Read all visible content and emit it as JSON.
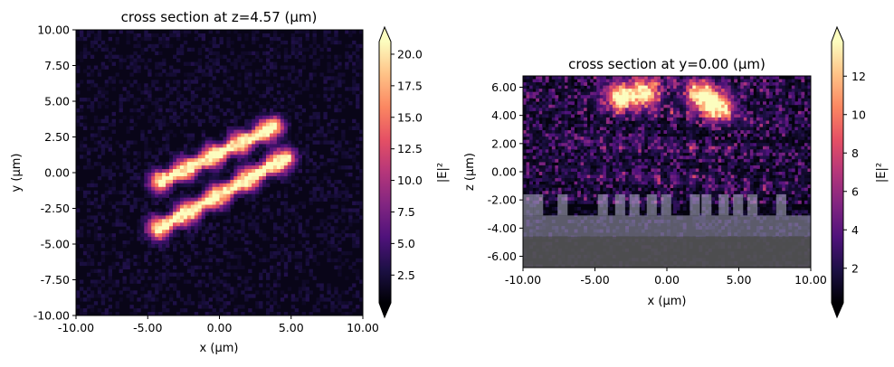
{
  "colors": {
    "colormap": "magma",
    "magma_stops": [
      "#000004",
      "#1c1044",
      "#4f127b",
      "#812581",
      "#b5367a",
      "#e55064",
      "#fb8761",
      "#fec287",
      "#fcfdbf"
    ],
    "structure_overlay": "#b4b4c8",
    "substrate_overlay": "#5a5a5a"
  },
  "chart_data": [
    {
      "type": "heatmap",
      "title": "cross section at z=4.57 (μm)",
      "xlabel": "x (μm)",
      "ylabel": "y (μm)",
      "xlim": [
        -10,
        10
      ],
      "ylim": [
        -10,
        10
      ],
      "x_ticks": [
        "-10.00",
        "-5.00",
        "0.00",
        "5.00",
        "10.00"
      ],
      "y_ticks": [
        "10.00",
        "7.50",
        "5.00",
        "2.50",
        "0.00",
        "-2.50",
        "-5.00",
        "-7.50",
        "-10.00"
      ],
      "colorbar": {
        "label": "|E|²",
        "range": [
          0.3,
          21.0
        ],
        "extend": "both",
        "ticks": [
          "20.0",
          "17.5",
          "15.0",
          "12.5",
          "10.0",
          "7.5",
          "5.0",
          "2.5"
        ]
      },
      "field_description": "two bright parallel diagonal bands (upper band from about (-4,-0.5) to (4,3.3), lower band from about (-4,-4) to (4.5,1)), dim speckled background",
      "features": [
        {
          "x0": -4.1,
          "y0": -0.6,
          "x1": 3.8,
          "y1": 3.2,
          "width": 0.9,
          "peak": 21
        },
        {
          "x0": -4.2,
          "y0": -3.9,
          "x1": 4.6,
          "y1": 1.0,
          "width": 0.9,
          "peak": 21
        }
      ]
    },
    {
      "type": "heatmap",
      "title": "cross section at y=0.00 (μm)",
      "xlabel": "x (μm)",
      "ylabel": "z (μm)",
      "xlim": [
        -10,
        10
      ],
      "ylim": [
        -6.8,
        6.8
      ],
      "x_ticks": [
        "-10.00",
        "-5.00",
        "0.00",
        "5.00",
        "10.00"
      ],
      "y_ticks": [
        "6.00",
        "4.00",
        "2.00",
        "0.00",
        "-2.00",
        "-4.00",
        "-6.00"
      ],
      "colorbar": {
        "label": "|E|²",
        "range": [
          0.2,
          13.8
        ],
        "extend": "both",
        "ticks": [
          "12",
          "10",
          "8",
          "6",
          "4",
          "2"
        ]
      },
      "field_description": "bright lobes near the top edge around x=-3 and x=2..4 with diagonal streaks fanning downward, dark region below z=-2",
      "features": [
        {
          "x": -3.2,
          "z": 5.3,
          "peak": 14
        },
        {
          "x": -1.5,
          "z": 5.6,
          "peak": 13
        },
        {
          "x": 2.4,
          "z": 5.4,
          "peak": 13
        },
        {
          "x": 3.6,
          "z": 4.6,
          "peak": 14
        }
      ],
      "structure": {
        "grating_z_range": [
          -3.1,
          -1.6
        ],
        "grating_pillars_x": [
          -10.0,
          -9.3,
          -7.6,
          -4.8,
          -3.6,
          -2.6,
          -1.4,
          -0.4,
          1.6,
          2.4,
          3.6,
          4.6,
          5.6,
          7.6
        ],
        "grating_pillar_width": 0.7,
        "buffer_z_range": [
          -4.6,
          -3.1
        ],
        "substrate_z_range": [
          -6.8,
          -4.6
        ]
      }
    }
  ]
}
